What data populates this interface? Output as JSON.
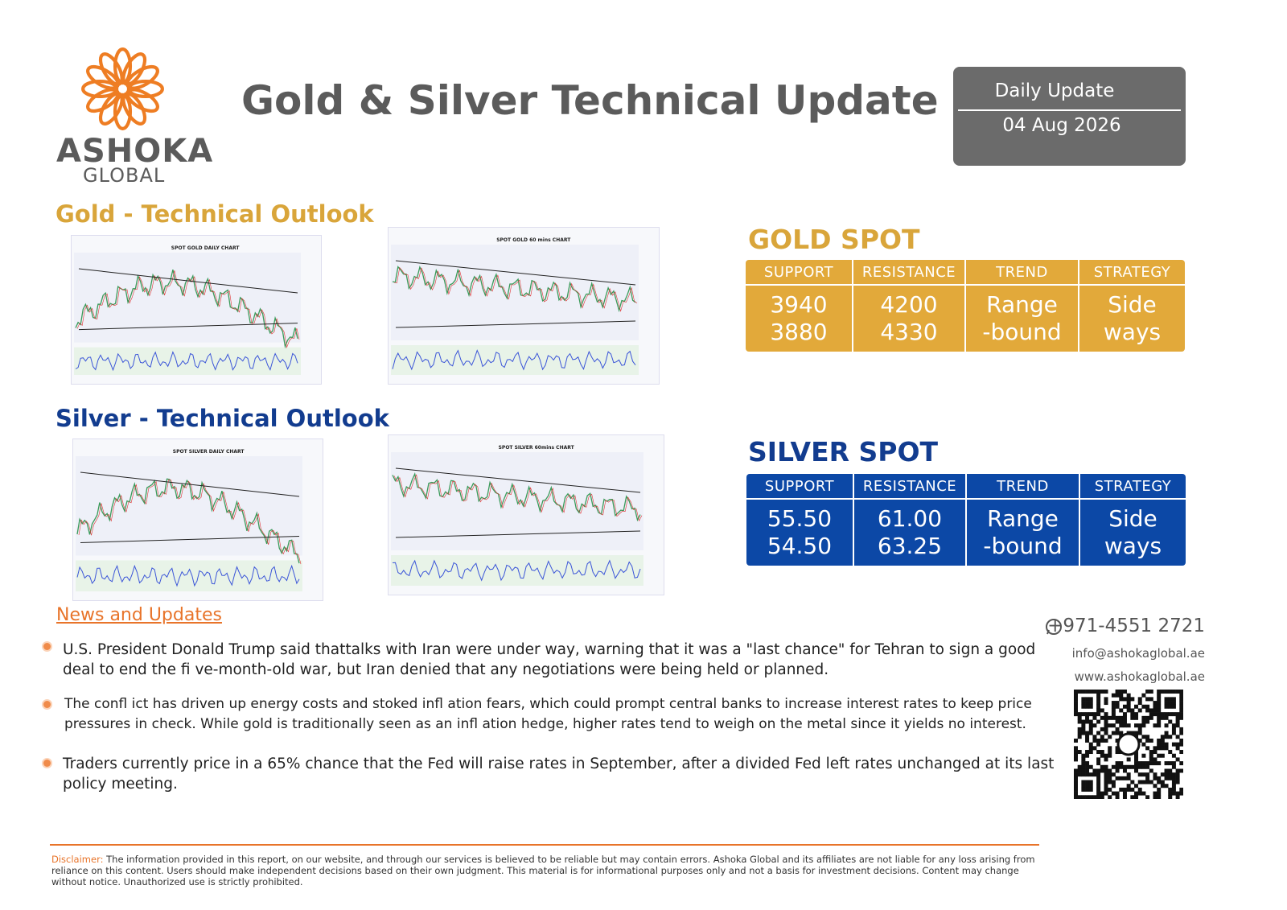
{
  "header": {
    "logo": {
      "name": "ASHOKA",
      "subtitle": "GLOBAL"
    },
    "title": "Gold & Silver Technical Update",
    "badge": {
      "label": "Daily Update",
      "date": "04 Aug 2026"
    }
  },
  "gold": {
    "heading": "Gold - Technical Outlook",
    "charts": [
      "SPOT GOLD DAILY CHART",
      "SPOT GOLD 60 mins CHART"
    ],
    "spot": {
      "title": "GOLD SPOT",
      "headers": [
        "SUPPORT",
        "RESISTANCE",
        "TREND",
        "STRATEGY"
      ],
      "cells": [
        [
          "3940",
          "3880"
        ],
        [
          "4200",
          "4330"
        ],
        [
          "Range",
          "-bound"
        ],
        [
          "Side",
          "ways"
        ]
      ]
    }
  },
  "silver": {
    "heading": "Silver - Technical Outlook",
    "charts": [
      "SPOT SILVER DAILY CHART",
      "SPOT SILVER 60mins CHART"
    ],
    "spot": {
      "title": "SILVER SPOT",
      "headers": [
        "SUPPORT",
        "RESISTANCE",
        "TREND",
        "STRATEGY"
      ],
      "cells": [
        [
          "55.50",
          "54.50"
        ],
        [
          "61.00",
          "63.25"
        ],
        [
          "Range",
          "-bound"
        ],
        [
          "Side",
          "ways"
        ]
      ]
    }
  },
  "news": {
    "heading": "News and Updates",
    "items": [
      "U.S. President Donald Trump said thattalks with Iran were under way, warning that it was a \"last chance\" for Tehran to sign a good deal to end the fi ve-month-old war, but Iran denied that any negotiations were being held or planned.",
      "The confl ict has driven up energy costs and stoked infl ation fears, which could prompt central banks to increase interest rates to keep price pressures in check. While gold is traditionally seen as an infl ation hedge, higher rates tend to weigh on the metal since it yields no interest.",
      "Traders currently price in a 65% chance that the Fed will raise rates in September, after a divided Fed left rates unchanged at its last policy meeting."
    ]
  },
  "contact": {
    "phone": "+971-4551 2721",
    "email": "info@ashokaglobal.ae",
    "website": "www.ashokaglobal.ae"
  },
  "disclaimer": {
    "label": "Disclaimer:",
    "text": "The information provided in this report, on our website, and through our services is believed to be reliable but may contain errors. Ashoka Global and its affiliates are not liable for any loss arising from reliance on this content. Users should make independent decisions based on their own judgment. This material is for informational purposes only and not a basis for investment decisions. Content may change without notice. Unauthorized use is strictly prohibited."
  }
}
